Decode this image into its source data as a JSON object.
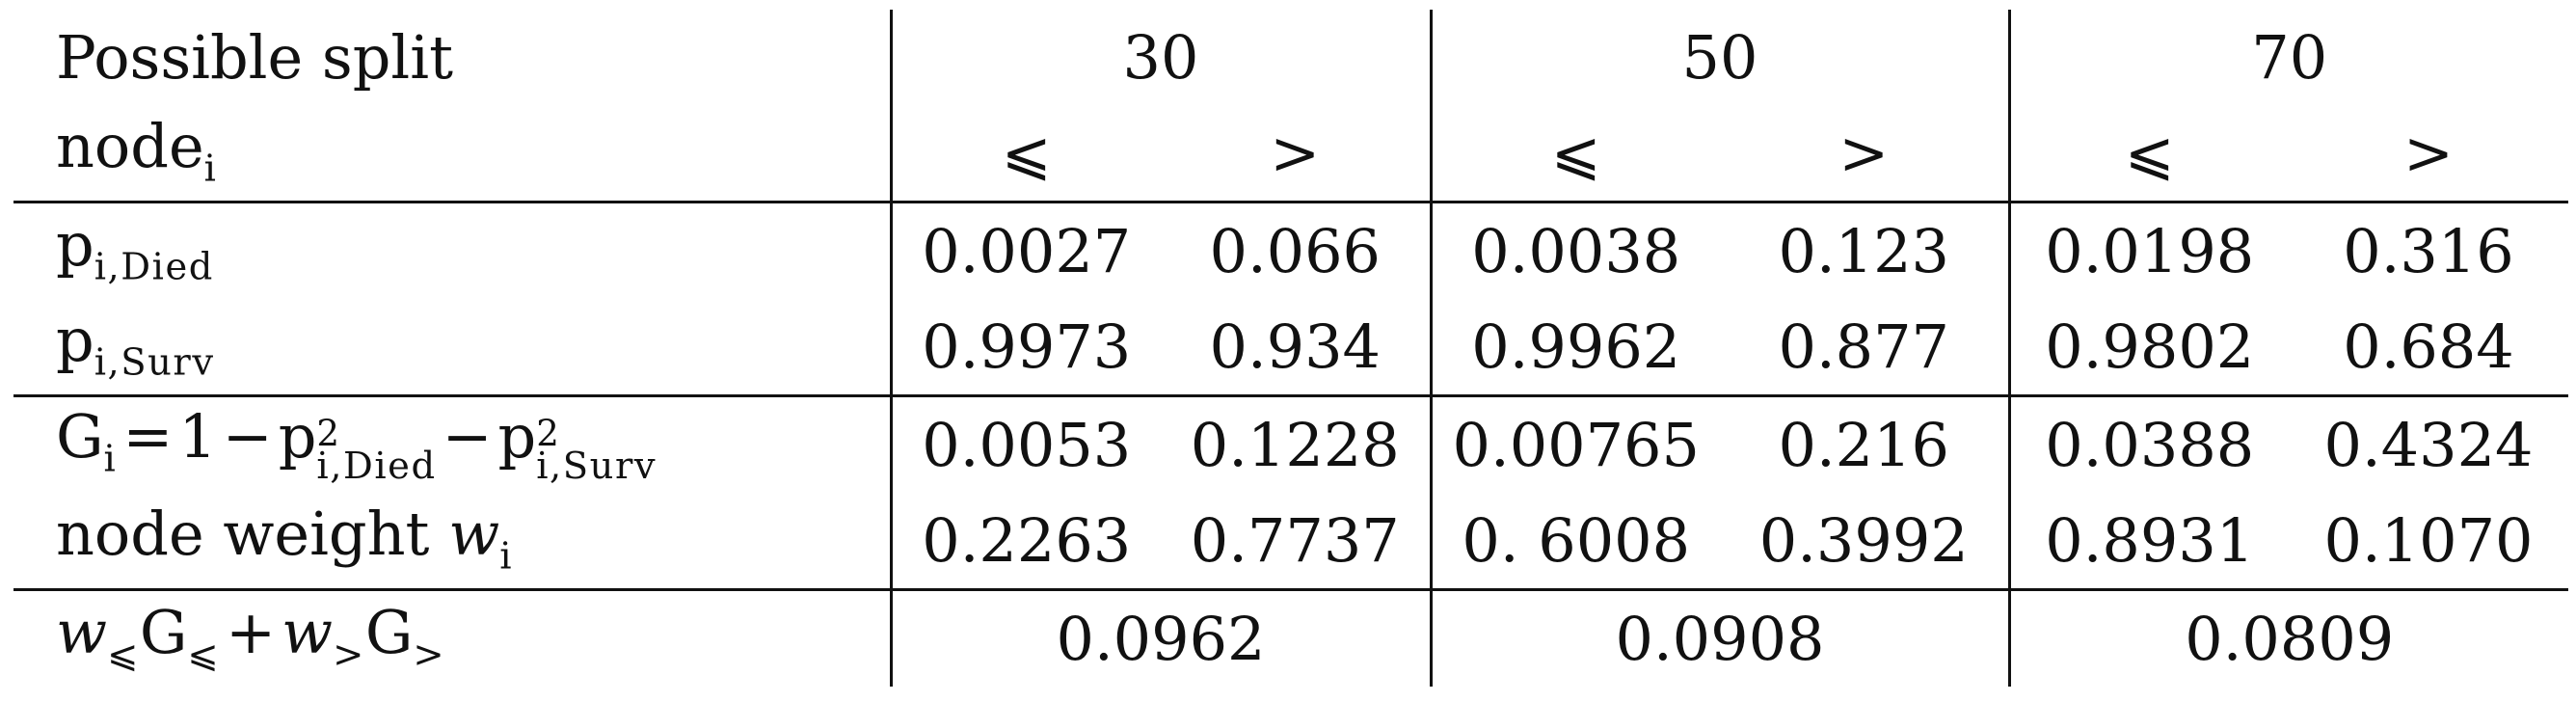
{
  "header": {
    "row_label_line1": "Possible split",
    "row_label_line2_base": "node",
    "row_label_line2_sub": "i",
    "thresholds": [
      "30",
      "50",
      "70"
    ],
    "le_symbol": "⩽",
    "gt_symbol": ">"
  },
  "labels": {
    "p_base": "p",
    "p_died_sub": "i,Died",
    "p_surv_sub": "i,Surv",
    "gini_lhs": "G",
    "gini_lhs_sub": "i",
    "gini_eq": "=",
    "gini_one": "1",
    "gini_minus": "−",
    "gini_sq": "2",
    "weight_text": "node weight ",
    "weight_sym": "w",
    "weight_sub": "i",
    "total_w": "w",
    "total_g": "G",
    "total_plus": "+",
    "total_le": "⩽",
    "total_gt": ">"
  },
  "rows": {
    "p_died": [
      "0.0027",
      "0.066",
      "0.0038",
      "0.123",
      "0.0198",
      "0.316"
    ],
    "p_surv": [
      "0.9973",
      "0.934",
      "0.9962",
      "0.877",
      "0.9802",
      "0.684"
    ],
    "gini": [
      "0.0053",
      "0.1228",
      "0.00765",
      "0.216",
      "0.0388",
      "0.4324"
    ],
    "node_weight": [
      "0.2263",
      "0.7737",
      "0. 6008",
      "0.3992",
      "0.8931",
      "0.1070"
    ],
    "weighted_gini": [
      "0.0962",
      "0.0908",
      "0.0809"
    ]
  }
}
